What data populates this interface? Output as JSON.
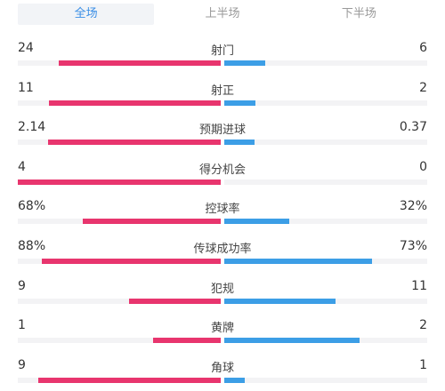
{
  "tabs": [
    {
      "label": "全场",
      "active": true
    },
    {
      "label": "上半场",
      "active": false
    },
    {
      "label": "下半场",
      "active": false
    }
  ],
  "colors": {
    "home": "#e8356e",
    "away": "#3c9ee6",
    "active_tab": "#3a8ee6"
  },
  "stats": [
    {
      "label": "射门",
      "left": "24",
      "right": "6",
      "left_share": 0.8,
      "right_share": 0.2
    },
    {
      "label": "射正",
      "left": "11",
      "right": "2",
      "left_share": 0.846,
      "right_share": 0.154
    },
    {
      "label": "预期进球",
      "left": "2.14",
      "right": "0.37",
      "left_share": 0.853,
      "right_share": 0.147
    },
    {
      "label": "得分机会",
      "left": "4",
      "right": "0",
      "left_share": 1.0,
      "right_share": 0.0
    },
    {
      "label": "控球率",
      "left": "68%",
      "right": "32%",
      "left_share": 0.68,
      "right_share": 0.32
    },
    {
      "label": "传球成功率",
      "left": "88%",
      "right": "73%",
      "left_share": 0.88,
      "right_share": 0.73
    },
    {
      "label": "犯规",
      "left": "9",
      "right": "11",
      "left_share": 0.45,
      "right_share": 0.55
    },
    {
      "label": "黄牌",
      "left": "1",
      "right": "2",
      "left_share": 0.333,
      "right_share": 0.667
    },
    {
      "label": "角球",
      "left": "9",
      "right": "1",
      "left_share": 0.9,
      "right_share": 0.1
    }
  ]
}
